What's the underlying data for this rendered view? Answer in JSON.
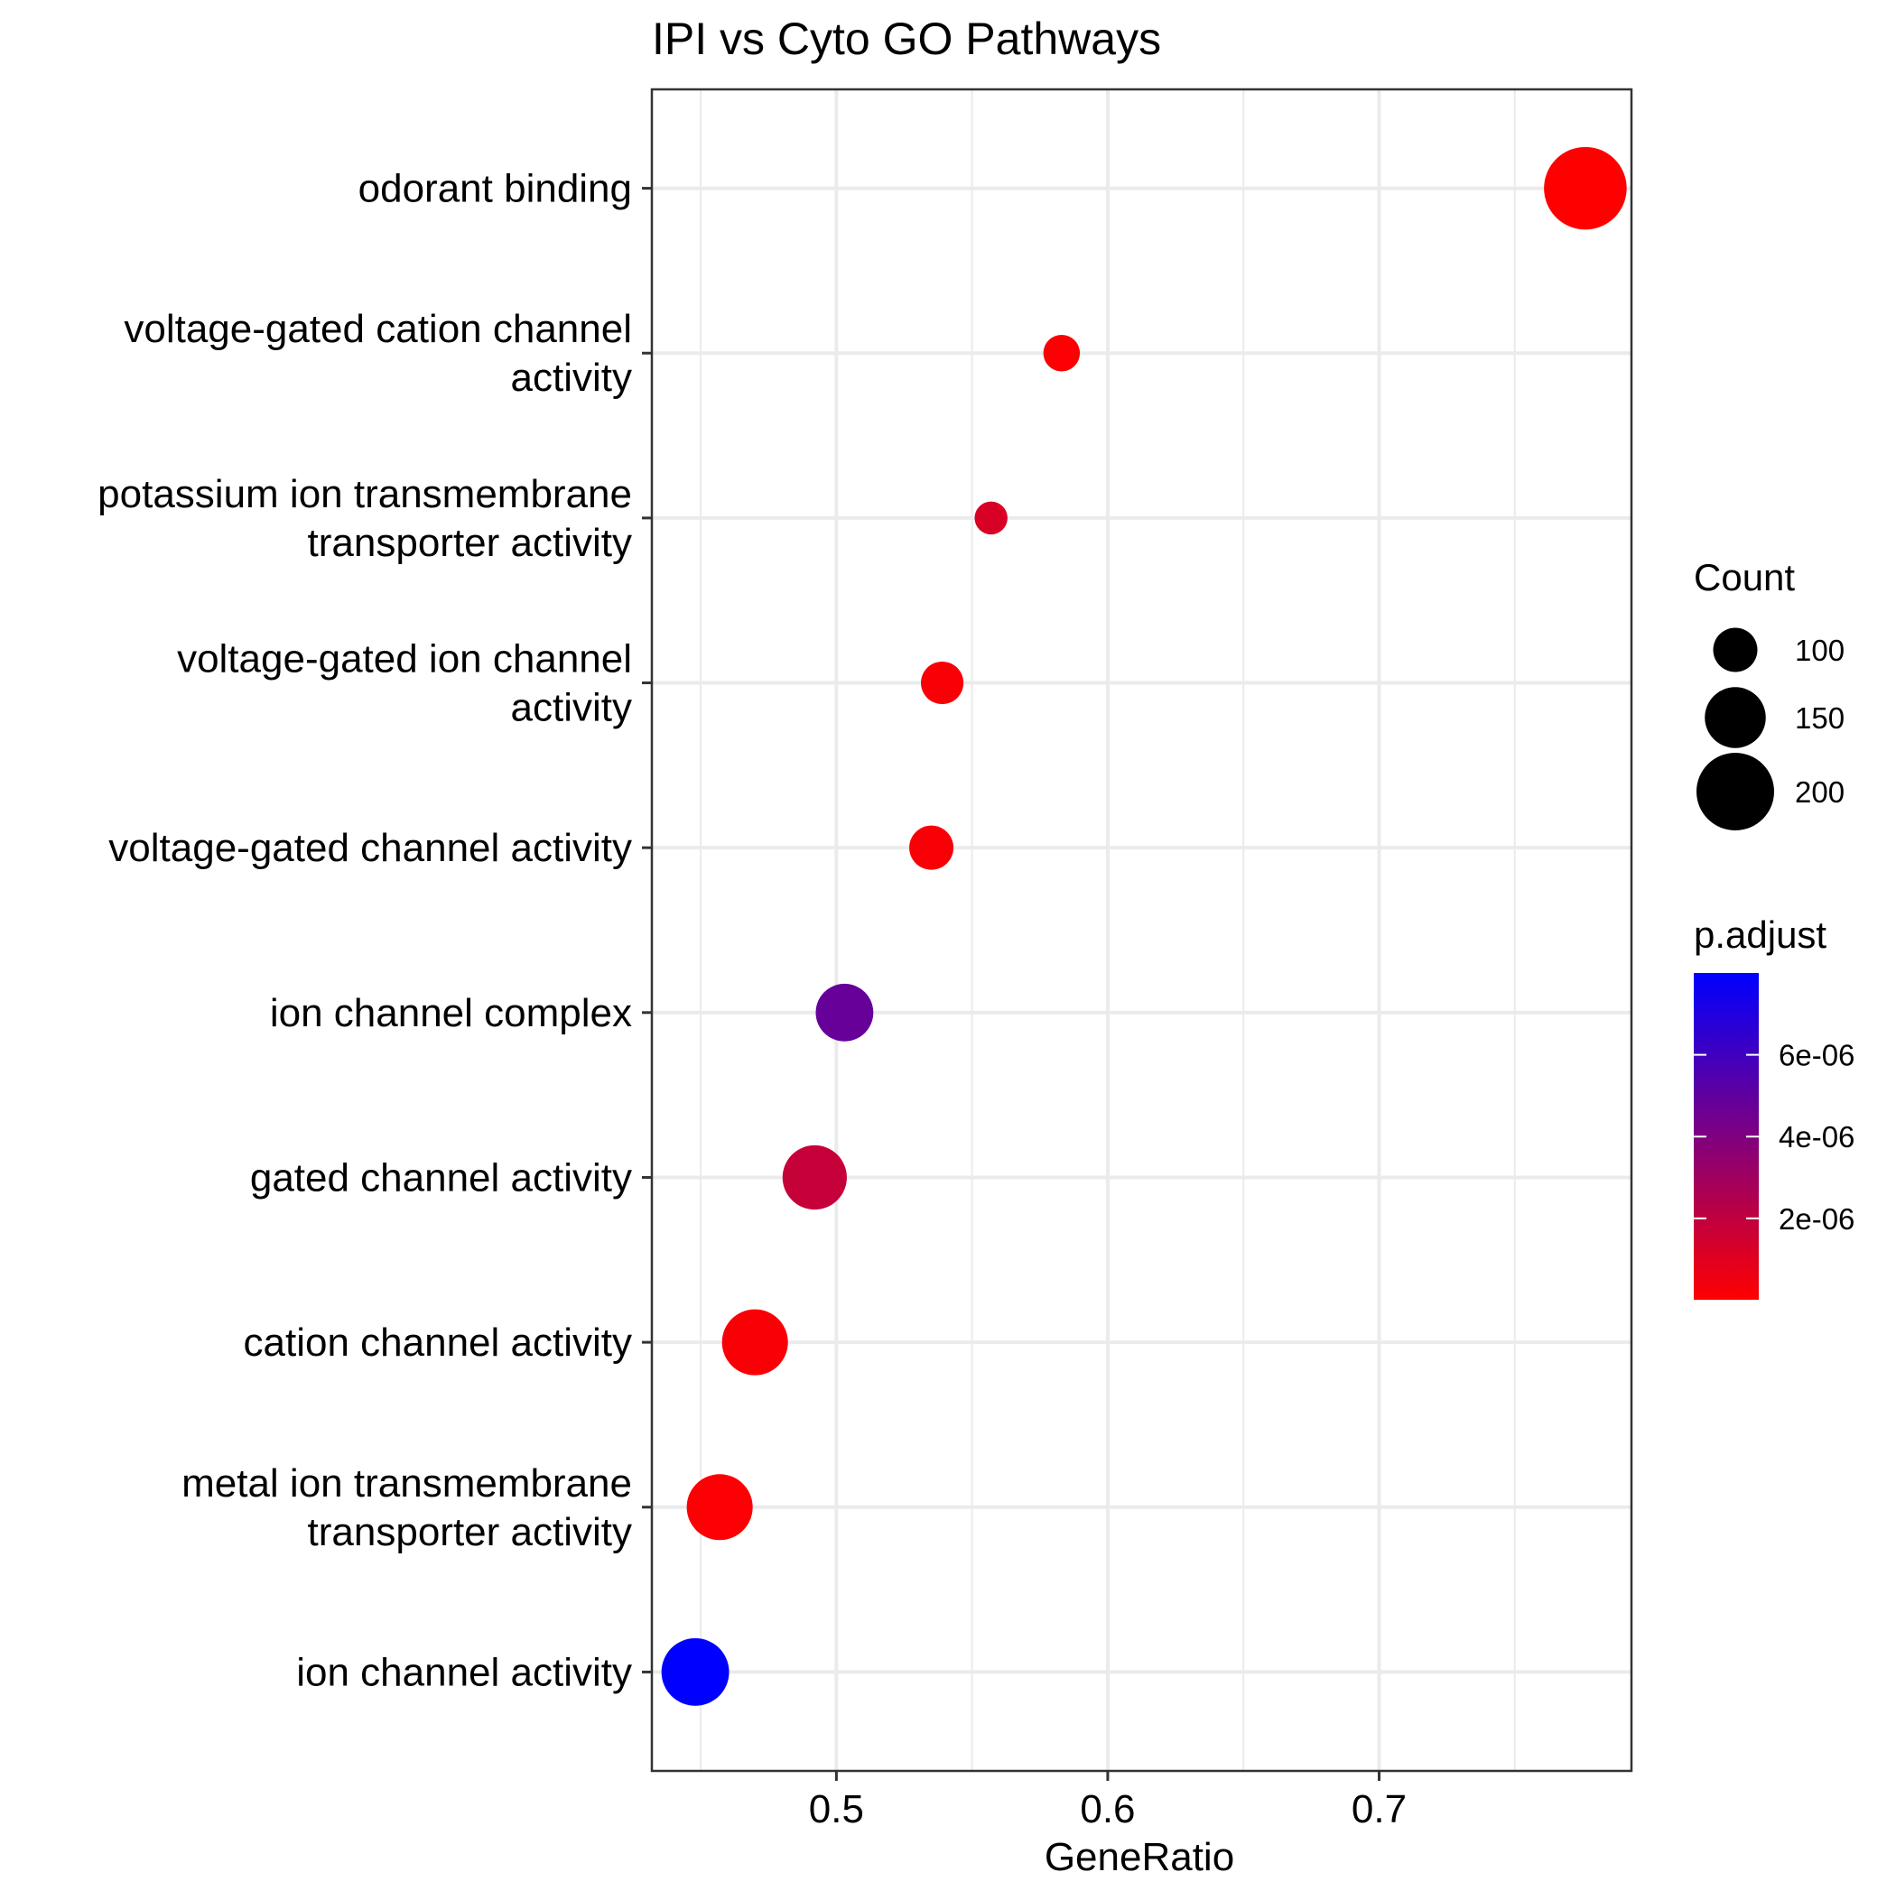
{
  "chart_data": {
    "type": "scatter",
    "title": "IPI vs Cyto GO Pathways",
    "xlabel": "GeneRatio",
    "ylabel": "",
    "xlim": [
      0.432,
      0.793
    ],
    "xticks": [
      0.5,
      0.6,
      0.7
    ],
    "xtick_labels": [
      "0.5",
      "0.6",
      "0.7"
    ],
    "grid": true,
    "categories": [
      "odorant binding",
      "voltage-gated cation channel\nactivity",
      "potassium ion transmembrane\ntransporter activity",
      "voltage-gated ion channel\nactivity",
      "voltage-gated channel activity",
      "ion channel complex",
      "gated channel activity",
      "cation channel activity",
      "metal ion transmembrane\ntransporter activity",
      "ion channel activity"
    ],
    "points": [
      {
        "category": "odorant binding",
        "gene_ratio": 0.776,
        "count": 215,
        "p_adjust": 1e-08
      },
      {
        "category": "voltage-gated cation channel\nactivity",
        "gene_ratio": 0.583,
        "count": 77,
        "p_adjust": 1e-07
      },
      {
        "category": "potassium ion transmembrane\ntransporter activity",
        "gene_ratio": 0.557,
        "count": 66,
        "p_adjust": 1.2e-06
      },
      {
        "category": "voltage-gated ion channel\nactivity",
        "gene_ratio": 0.539,
        "count": 95,
        "p_adjust": 2e-07
      },
      {
        "category": "voltage-gated channel activity",
        "gene_ratio": 0.535,
        "count": 100,
        "p_adjust": 2e-07
      },
      {
        "category": "ion channel complex",
        "gene_ratio": 0.503,
        "count": 140,
        "p_adjust": 4.8e-06
      },
      {
        "category": "gated channel activity",
        "gene_ratio": 0.492,
        "count": 160,
        "p_adjust": 1.8e-06
      },
      {
        "category": "cation channel activity",
        "gene_ratio": 0.47,
        "count": 165,
        "p_adjust": 2e-07
      },
      {
        "category": "metal ion transmembrane\ntransporter activity",
        "gene_ratio": 0.457,
        "count": 165,
        "p_adjust": 1e-07
      },
      {
        "category": "ion channel activity",
        "gene_ratio": 0.448,
        "count": 170,
        "p_adjust": 8e-06
      }
    ],
    "size_legend": {
      "title": "Count",
      "values": [
        100,
        150,
        200
      ],
      "labels": [
        "100",
        "150",
        "200"
      ]
    },
    "color_legend": {
      "title": "p.adjust",
      "min": 1e-08,
      "max": 8e-06,
      "low_color": "#ff0000",
      "high_color": "#0000ff",
      "ticks": [
        2e-06,
        4e-06,
        6e-06
      ],
      "tick_labels": [
        "2e-06",
        "4e-06",
        "6e-06"
      ]
    },
    "legend_position": "right"
  }
}
